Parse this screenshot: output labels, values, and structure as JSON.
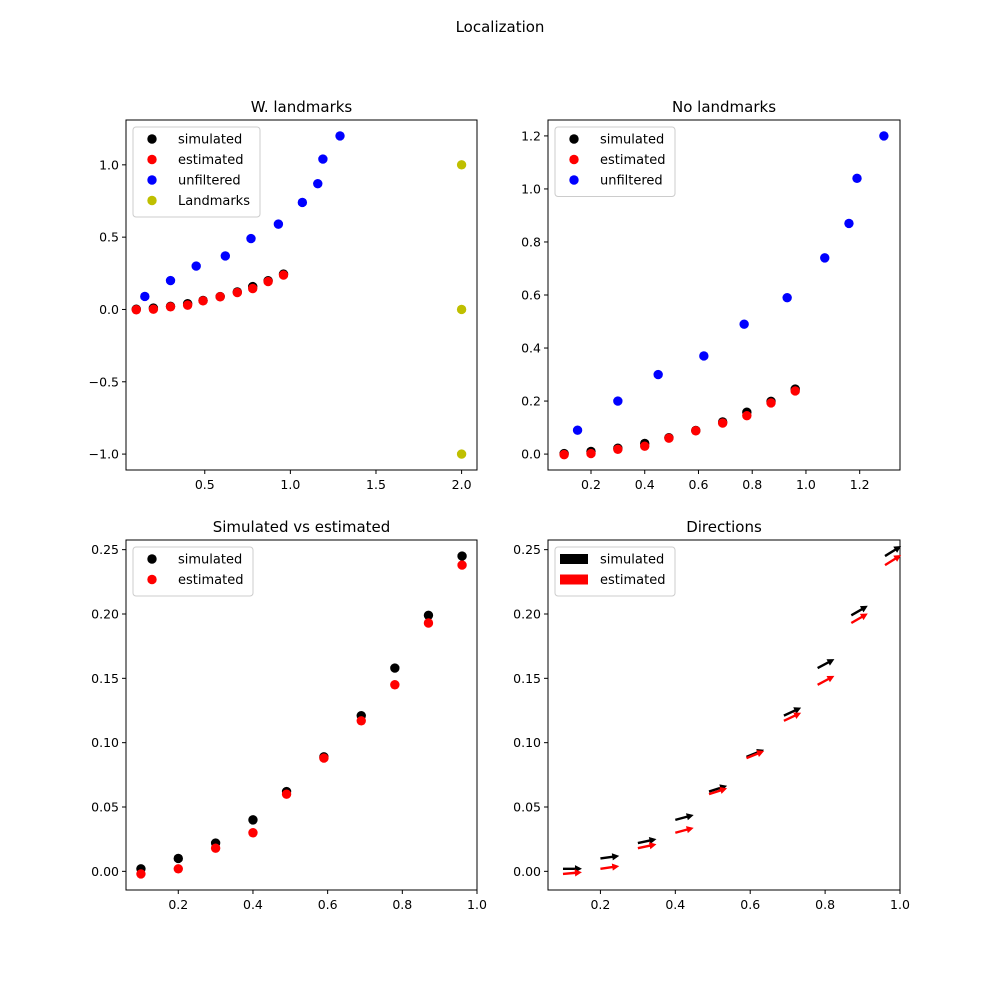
{
  "figure_title": "Localization",
  "colors": {
    "simulated": "#000000",
    "estimated": "#ff0000",
    "unfiltered": "#0000ff",
    "landmarks": "#bfbf00"
  },
  "chart_data": [
    {
      "type": "scatter",
      "title": "W. landmarks",
      "legend_loc": "upper-left",
      "xlim": [
        0.04,
        2.09
      ],
      "ylim": [
        -1.11,
        1.31
      ],
      "xticks": [
        0.5,
        1.0,
        1.5,
        2.0
      ],
      "xtick_labels": [
        "0.5",
        "1.0",
        "1.5",
        "2.0"
      ],
      "yticks": [
        -1.0,
        -0.5,
        0.0,
        0.5,
        1.0
      ],
      "ytick_labels": [
        "−1.0",
        "−0.5",
        "0.0",
        "0.5",
        "1.0"
      ],
      "series": [
        {
          "name": "simulated",
          "color_key": "simulated",
          "x": [
            0.1,
            0.2,
            0.3,
            0.4,
            0.49,
            0.59,
            0.69,
            0.78,
            0.87,
            0.96
          ],
          "y": [
            0.002,
            0.01,
            0.022,
            0.04,
            0.062,
            0.089,
            0.121,
            0.158,
            0.199,
            0.245
          ]
        },
        {
          "name": "estimated",
          "color_key": "estimated",
          "x": [
            0.1,
            0.2,
            0.3,
            0.4,
            0.49,
            0.59,
            0.69,
            0.78,
            0.87,
            0.96
          ],
          "y": [
            -0.002,
            0.002,
            0.018,
            0.03,
            0.06,
            0.088,
            0.117,
            0.145,
            0.193,
            0.238
          ]
        },
        {
          "name": "unfiltered",
          "color_key": "unfiltered",
          "x": [
            0.15,
            0.3,
            0.45,
            0.62,
            0.77,
            0.93,
            1.07,
            1.16,
            1.19,
            1.29
          ],
          "y": [
            0.09,
            0.2,
            0.3,
            0.37,
            0.49,
            0.59,
            0.74,
            0.87,
            1.04,
            1.2
          ]
        },
        {
          "name": "Landmarks",
          "color_key": "landmarks",
          "x": [
            2.0,
            2.0,
            2.0
          ],
          "y": [
            1.0,
            0.0,
            -1.0
          ]
        }
      ]
    },
    {
      "type": "scatter",
      "title": "No landmarks",
      "legend_loc": "upper-left",
      "xlim": [
        0.04,
        1.35
      ],
      "ylim": [
        -0.06,
        1.26
      ],
      "xticks": [
        0.2,
        0.4,
        0.6,
        0.8,
        1.0,
        1.2
      ],
      "xtick_labels": [
        "0.2",
        "0.4",
        "0.6",
        "0.8",
        "1.0",
        "1.2"
      ],
      "yticks": [
        0.0,
        0.2,
        0.4,
        0.6,
        0.8,
        1.0,
        1.2
      ],
      "ytick_labels": [
        "0.0",
        "0.2",
        "0.4",
        "0.6",
        "0.8",
        "1.0",
        "1.2"
      ],
      "series": [
        {
          "name": "simulated",
          "color_key": "simulated",
          "x": [
            0.1,
            0.2,
            0.3,
            0.4,
            0.49,
            0.59,
            0.69,
            0.78,
            0.87,
            0.96
          ],
          "y": [
            0.002,
            0.01,
            0.022,
            0.04,
            0.062,
            0.089,
            0.121,
            0.158,
            0.199,
            0.245
          ]
        },
        {
          "name": "estimated",
          "color_key": "estimated",
          "x": [
            0.1,
            0.2,
            0.3,
            0.4,
            0.49,
            0.59,
            0.69,
            0.78,
            0.87,
            0.96
          ],
          "y": [
            -0.002,
            0.002,
            0.018,
            0.03,
            0.06,
            0.088,
            0.117,
            0.145,
            0.193,
            0.238
          ]
        },
        {
          "name": "unfiltered",
          "color_key": "unfiltered",
          "x": [
            0.15,
            0.3,
            0.45,
            0.62,
            0.77,
            0.93,
            1.07,
            1.16,
            1.19,
            1.29
          ],
          "y": [
            0.09,
            0.2,
            0.3,
            0.37,
            0.49,
            0.59,
            0.74,
            0.87,
            1.04,
            1.2
          ]
        }
      ]
    },
    {
      "type": "scatter",
      "title": "Simulated vs estimated",
      "legend_loc": "upper-left",
      "xlim": [
        0.06,
        1.0
      ],
      "ylim": [
        -0.0145,
        0.2575
      ],
      "xticks": [
        0.2,
        0.4,
        0.6,
        0.8,
        1.0
      ],
      "xtick_labels": [
        "0.2",
        "0.4",
        "0.6",
        "0.8",
        "1.0"
      ],
      "yticks": [
        0.0,
        0.05,
        0.1,
        0.15,
        0.2,
        0.25
      ],
      "ytick_labels": [
        "0.00",
        "0.05",
        "0.10",
        "0.15",
        "0.20",
        "0.25"
      ],
      "series": [
        {
          "name": "simulated",
          "color_key": "simulated",
          "x": [
            0.1,
            0.2,
            0.3,
            0.4,
            0.49,
            0.59,
            0.69,
            0.78,
            0.87,
            0.96
          ],
          "y": [
            0.002,
            0.01,
            0.022,
            0.04,
            0.062,
            0.089,
            0.121,
            0.158,
            0.199,
            0.245
          ]
        },
        {
          "name": "estimated",
          "color_key": "estimated",
          "x": [
            0.1,
            0.2,
            0.3,
            0.4,
            0.49,
            0.59,
            0.69,
            0.78,
            0.87,
            0.96
          ],
          "y": [
            -0.002,
            0.002,
            0.018,
            0.03,
            0.06,
            0.088,
            0.117,
            0.145,
            0.193,
            0.238
          ]
        }
      ]
    },
    {
      "type": "quiver",
      "title": "Directions",
      "legend_loc": "upper-left",
      "xlim": [
        0.06,
        1.0
      ],
      "ylim": [
        -0.0145,
        0.2575
      ],
      "xticks": [
        0.2,
        0.4,
        0.6,
        0.8,
        1.0
      ],
      "xtick_labels": [
        "0.2",
        "0.4",
        "0.6",
        "0.8",
        "1.0"
      ],
      "yticks": [
        0.0,
        0.05,
        0.1,
        0.15,
        0.2,
        0.25
      ],
      "ytick_labels": [
        "0.00",
        "0.05",
        "0.10",
        "0.15",
        "0.20",
        "0.25"
      ],
      "series": [
        {
          "name": "simulated",
          "color_key": "simulated",
          "x": [
            0.1,
            0.2,
            0.3,
            0.4,
            0.49,
            0.59,
            0.69,
            0.78,
            0.87,
            0.96
          ],
          "y": [
            0.002,
            0.01,
            0.022,
            0.04,
            0.062,
            0.089,
            0.121,
            0.158,
            0.199,
            0.245
          ],
          "angle_deg": [
            0,
            8,
            12,
            15,
            18,
            22,
            25,
            28,
            30,
            32
          ]
        },
        {
          "name": "estimated",
          "color_key": "estimated",
          "x": [
            0.1,
            0.2,
            0.3,
            0.4,
            0.49,
            0.59,
            0.69,
            0.78,
            0.87,
            0.96
          ],
          "y": [
            -0.002,
            0.002,
            0.018,
            0.03,
            0.06,
            0.088,
            0.117,
            0.145,
            0.193,
            0.238
          ],
          "angle_deg": [
            5,
            8,
            12,
            15,
            18,
            22,
            25,
            28,
            30,
            32
          ]
        }
      ]
    }
  ]
}
